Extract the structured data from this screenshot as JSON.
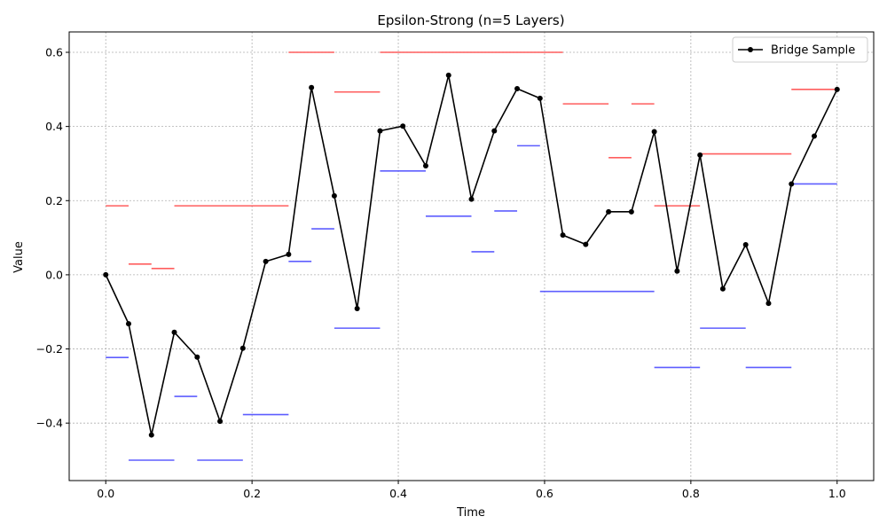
{
  "chart_data": {
    "type": "line",
    "title": "Epsilon-Strong (n=5 Layers)",
    "xlabel": "Time",
    "ylabel": "Value",
    "xlim": [
      -0.05,
      1.05
    ],
    "ylim": [
      -0.555,
      0.655
    ],
    "xticks": [
      0.0,
      0.2,
      0.4,
      0.6,
      0.8,
      1.0
    ],
    "xtick_labels": [
      "0.0",
      "0.2",
      "0.4",
      "0.6",
      "0.8",
      "1.0"
    ],
    "yticks": [
      -0.4,
      -0.2,
      0.0,
      0.2,
      0.4,
      0.6
    ],
    "ytick_labels": [
      "−0.4",
      "−0.2",
      "0.0",
      "0.2",
      "0.4",
      "0.6"
    ],
    "grid": true,
    "legend_position": "top-right",
    "series": [
      {
        "name": "Bridge Sample",
        "color": "#000000",
        "marker": "circle",
        "x": [
          0.0,
          0.03125,
          0.0625,
          0.09375,
          0.125,
          0.15625,
          0.1875,
          0.21875,
          0.25,
          0.28125,
          0.3125,
          0.34375,
          0.375,
          0.40625,
          0.4375,
          0.46875,
          0.5,
          0.53125,
          0.5625,
          0.59375,
          0.625,
          0.65625,
          0.6875,
          0.71875,
          0.75,
          0.78125,
          0.8125,
          0.84375,
          0.875,
          0.90625,
          0.9375,
          0.96875,
          1.0
        ],
        "y": [
          0.0,
          -0.132,
          -0.432,
          -0.155,
          -0.222,
          -0.395,
          -0.198,
          0.036,
          0.055,
          0.505,
          0.213,
          -0.091,
          0.388,
          0.401,
          0.294,
          0.538,
          0.204,
          0.388,
          0.502,
          0.476,
          0.107,
          0.082,
          0.17,
          0.17,
          0.386,
          0.01,
          0.323,
          -0.038,
          0.081,
          -0.077,
          0.245,
          0.374,
          0.5
        ]
      }
    ],
    "upper_bounds": {
      "color": "#ff4d4d",
      "segments": [
        {
          "x0": 0.0,
          "x1": 0.03125,
          "y": 0.186
        },
        {
          "x0": 0.03125,
          "x1": 0.0625,
          "y": 0.029
        },
        {
          "x0": 0.0625,
          "x1": 0.09375,
          "y": 0.017
        },
        {
          "x0": 0.09375,
          "x1": 0.25,
          "y": 0.186
        },
        {
          "x0": 0.25,
          "x1": 0.3125,
          "y": 0.6
        },
        {
          "x0": 0.3125,
          "x1": 0.375,
          "y": 0.493
        },
        {
          "x0": 0.375,
          "x1": 0.625,
          "y": 0.6
        },
        {
          "x0": 0.625,
          "x1": 0.6875,
          "y": 0.461
        },
        {
          "x0": 0.6875,
          "x1": 0.71875,
          "y": 0.316
        },
        {
          "x0": 0.71875,
          "x1": 0.75,
          "y": 0.461
        },
        {
          "x0": 0.75,
          "x1": 0.8125,
          "y": 0.186
        },
        {
          "x0": 0.8125,
          "x1": 0.9375,
          "y": 0.326
        },
        {
          "x0": 0.9375,
          "x1": 1.0,
          "y": 0.5
        }
      ]
    },
    "lower_bounds": {
      "color": "#4d4dff",
      "segments": [
        {
          "x0": 0.0,
          "x1": 0.03125,
          "y": -0.223
        },
        {
          "x0": 0.03125,
          "x1": 0.09375,
          "y": -0.5
        },
        {
          "x0": 0.09375,
          "x1": 0.125,
          "y": -0.328
        },
        {
          "x0": 0.125,
          "x1": 0.1875,
          "y": -0.5
        },
        {
          "x0": 0.1875,
          "x1": 0.25,
          "y": -0.377
        },
        {
          "x0": 0.25,
          "x1": 0.28125,
          "y": 0.036
        },
        {
          "x0": 0.28125,
          "x1": 0.3125,
          "y": 0.124
        },
        {
          "x0": 0.3125,
          "x1": 0.375,
          "y": -0.144
        },
        {
          "x0": 0.375,
          "x1": 0.4375,
          "y": 0.28
        },
        {
          "x0": 0.4375,
          "x1": 0.5,
          "y": 0.158
        },
        {
          "x0": 0.5,
          "x1": 0.53125,
          "y": 0.062
        },
        {
          "x0": 0.53125,
          "x1": 0.5625,
          "y": 0.172
        },
        {
          "x0": 0.5625,
          "x1": 0.59375,
          "y": 0.348
        },
        {
          "x0": 0.59375,
          "x1": 0.75,
          "y": -0.045
        },
        {
          "x0": 0.75,
          "x1": 0.8125,
          "y": -0.25
        },
        {
          "x0": 0.8125,
          "x1": 0.875,
          "y": -0.144
        },
        {
          "x0": 0.875,
          "x1": 0.9375,
          "y": -0.25
        },
        {
          "x0": 0.9375,
          "x1": 1.0,
          "y": 0.245
        }
      ]
    }
  }
}
